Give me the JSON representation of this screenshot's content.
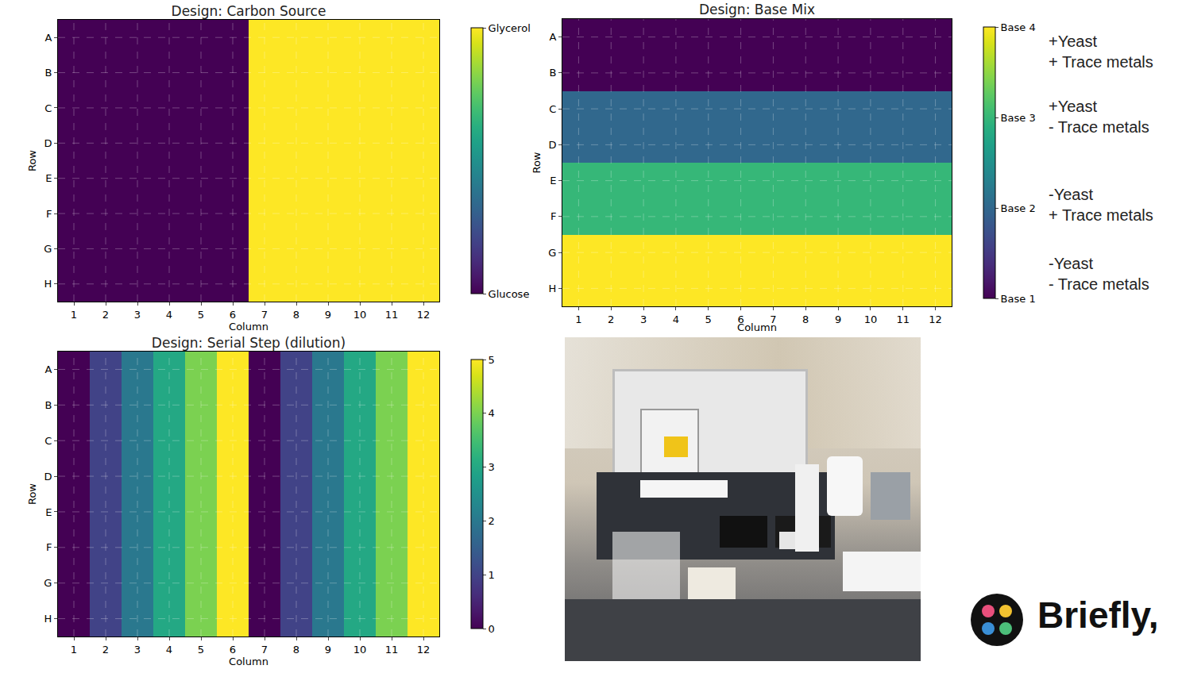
{
  "chart_data": [
    {
      "type": "heatmap",
      "title": "Design: Carbon Source",
      "x_label": "Column",
      "y_label": "Row",
      "x": [
        1,
        2,
        3,
        4,
        5,
        6,
        7,
        8,
        9,
        10,
        11,
        12
      ],
      "y": [
        "A",
        "B",
        "C",
        "D",
        "E",
        "F",
        "G",
        "H"
      ],
      "xlim": [
        0.5,
        12.5
      ],
      "xticks": [
        1,
        2,
        3,
        4,
        5,
        6,
        7,
        8,
        9,
        10,
        11,
        12
      ],
      "grid": true,
      "cells": [
        [
          0,
          0,
          0,
          0,
          0,
          0,
          1,
          1,
          1,
          1,
          1,
          1
        ],
        [
          0,
          0,
          0,
          0,
          0,
          0,
          1,
          1,
          1,
          1,
          1,
          1
        ],
        [
          0,
          0,
          0,
          0,
          0,
          0,
          1,
          1,
          1,
          1,
          1,
          1
        ],
        [
          0,
          0,
          0,
          0,
          0,
          0,
          1,
          1,
          1,
          1,
          1,
          1
        ],
        [
          0,
          0,
          0,
          0,
          0,
          0,
          1,
          1,
          1,
          1,
          1,
          1
        ],
        [
          0,
          0,
          0,
          0,
          0,
          0,
          1,
          1,
          1,
          1,
          1,
          1
        ],
        [
          0,
          0,
          0,
          0,
          0,
          0,
          1,
          1,
          1,
          1,
          1,
          1
        ],
        [
          0,
          0,
          0,
          0,
          0,
          0,
          1,
          1,
          1,
          1,
          1,
          1
        ]
      ],
      "colorbar_range": [
        0,
        1
      ],
      "colorbar_ticks": [
        {
          "value": 0,
          "label": "Glucose"
        },
        {
          "value": 1,
          "label": "Glycerol"
        }
      ]
    },
    {
      "type": "heatmap",
      "title": "Design: Base Mix",
      "x_label": "Column",
      "y_label": "Row",
      "x": [
        1,
        2,
        3,
        4,
        5,
        6,
        7,
        8,
        9,
        10,
        11,
        12
      ],
      "y": [
        "A",
        "B",
        "C",
        "D",
        "E",
        "F",
        "G",
        "H"
      ],
      "xlim": [
        0.5,
        12.5
      ],
      "xticks": [
        1,
        2,
        3,
        4,
        5,
        6,
        7,
        8,
        9,
        10,
        11,
        12
      ],
      "grid": true,
      "cells": [
        [
          1,
          1,
          1,
          1,
          1,
          1,
          1,
          1,
          1,
          1,
          1,
          1
        ],
        [
          1,
          1,
          1,
          1,
          1,
          1,
          1,
          1,
          1,
          1,
          1,
          1
        ],
        [
          2,
          2,
          2,
          2,
          2,
          2,
          2,
          2,
          2,
          2,
          2,
          2
        ],
        [
          2,
          2,
          2,
          2,
          2,
          2,
          2,
          2,
          2,
          2,
          2,
          2
        ],
        [
          3,
          3,
          3,
          3,
          3,
          3,
          3,
          3,
          3,
          3,
          3,
          3
        ],
        [
          3,
          3,
          3,
          3,
          3,
          3,
          3,
          3,
          3,
          3,
          3,
          3
        ],
        [
          4,
          4,
          4,
          4,
          4,
          4,
          4,
          4,
          4,
          4,
          4,
          4
        ],
        [
          4,
          4,
          4,
          4,
          4,
          4,
          4,
          4,
          4,
          4,
          4,
          4
        ]
      ],
      "colorbar_range": [
        1,
        4
      ],
      "colorbar_ticks": [
        {
          "value": 1,
          "label": "Base 1"
        },
        {
          "value": 2,
          "label": "Base 2"
        },
        {
          "value": 3,
          "label": "Base 3"
        },
        {
          "value": 4,
          "label": "Base 4"
        }
      ],
      "annotations": [
        [
          "+Yeast",
          "+ Trace metals"
        ],
        [
          "+Yeast",
          "- Trace metals"
        ],
        [
          "-Yeast",
          "+ Trace metals"
        ],
        [
          "-Yeast",
          "- Trace metals"
        ]
      ]
    },
    {
      "type": "heatmap",
      "title": "Design: Serial Step (dilution)",
      "x_label": "Column",
      "y_label": "Row",
      "x": [
        1,
        2,
        3,
        4,
        5,
        6,
        7,
        8,
        9,
        10,
        11,
        12
      ],
      "y": [
        "A",
        "B",
        "C",
        "D",
        "E",
        "F",
        "G",
        "H"
      ],
      "xlim": [
        0.5,
        12.5
      ],
      "xticks": [
        1,
        2,
        3,
        4,
        5,
        6,
        7,
        8,
        9,
        10,
        11,
        12
      ],
      "grid": true,
      "cells": [
        [
          0,
          1,
          2,
          3,
          4,
          5,
          0,
          1,
          2,
          3,
          4,
          5
        ],
        [
          0,
          1,
          2,
          3,
          4,
          5,
          0,
          1,
          2,
          3,
          4,
          5
        ],
        [
          0,
          1,
          2,
          3,
          4,
          5,
          0,
          1,
          2,
          3,
          4,
          5
        ],
        [
          0,
          1,
          2,
          3,
          4,
          5,
          0,
          1,
          2,
          3,
          4,
          5
        ],
        [
          0,
          1,
          2,
          3,
          4,
          5,
          0,
          1,
          2,
          3,
          4,
          5
        ],
        [
          0,
          1,
          2,
          3,
          4,
          5,
          0,
          1,
          2,
          3,
          4,
          5
        ],
        [
          0,
          1,
          2,
          3,
          4,
          5,
          0,
          1,
          2,
          3,
          4,
          5
        ],
        [
          0,
          1,
          2,
          3,
          4,
          5,
          0,
          1,
          2,
          3,
          4,
          5
        ]
      ],
      "colorbar_range": [
        0,
        5
      ],
      "colorbar_ticks": [
        0,
        1,
        2,
        3,
        4,
        5
      ]
    }
  ],
  "logo": {
    "text": "Briefly,"
  }
}
